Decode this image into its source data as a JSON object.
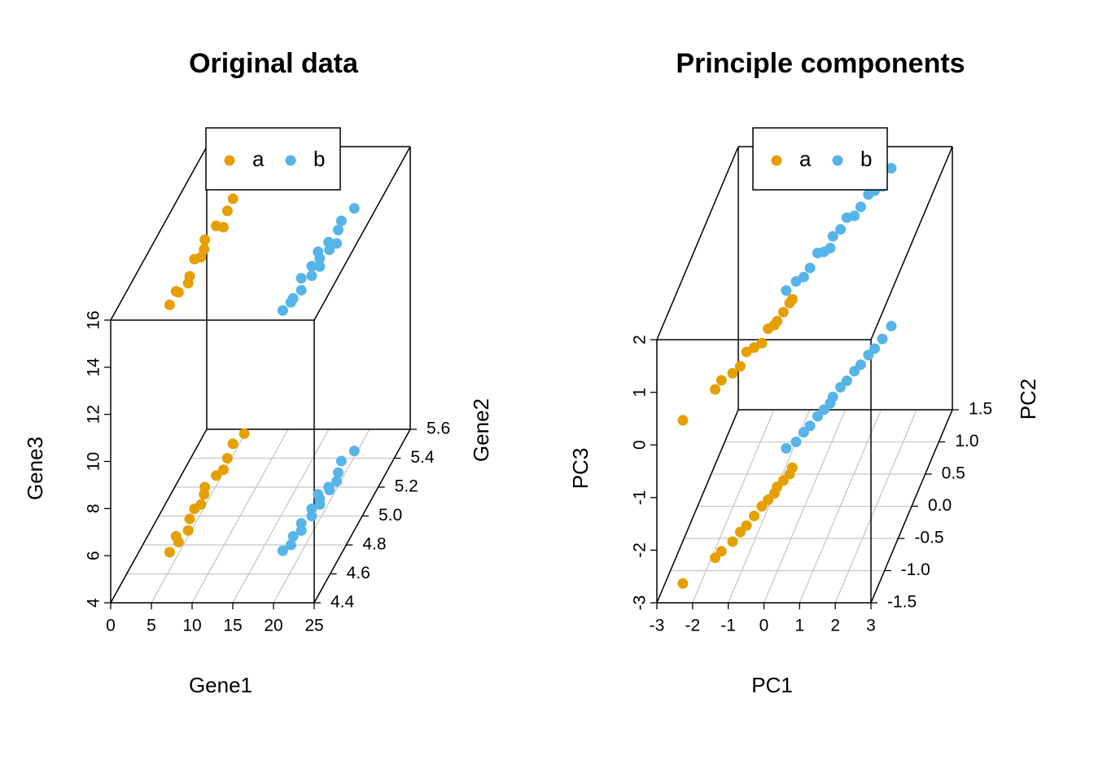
{
  "chart_data": [
    {
      "type": "scatter3d",
      "title": "Original data",
      "xlabel": "Gene1",
      "ylabel": "Gene2",
      "zlabel": "Gene3",
      "xlim": [
        0,
        25
      ],
      "ylim": [
        4.4,
        5.6
      ],
      "zlim": [
        4,
        16
      ],
      "xticks": [
        0,
        5,
        10,
        15,
        20,
        25
      ],
      "yticks": [
        4.4,
        4.6,
        4.8,
        {
          "value": 5,
          "label": "5.0"
        },
        5.2,
        5.4,
        5.6
      ],
      "zticks": [
        4,
        6,
        8,
        10,
        12,
        14,
        16
      ],
      "grid": true,
      "legend": "top",
      "series": [
        {
          "name": "a",
          "color": "#e69f00",
          "x": [
            3.8,
            4.2,
            3.5,
            4.6,
            4.0,
            3.9,
            4.4,
            4.1,
            3.7,
            4.3,
            4.8,
            4.5,
            4.2,
            4.9
          ],
          "y": [
            4.75,
            4.82,
            4.86,
            4.9,
            4.98,
            5.05,
            5.08,
            5.15,
            5.2,
            5.28,
            5.32,
            5.4,
            5.5,
            5.57
          ],
          "z": [
            14.5,
            14.6,
            14.4,
            14.5,
            14.3,
            14.6,
            14.5,
            14.4,
            14.5,
            14.6,
            14.3,
            14.5,
            14.4,
            14.6
          ]
        },
        {
          "name": "b",
          "color": "#56b4e9",
          "x": [
            17.6,
            18.2,
            17.9,
            18.5,
            18.0,
            18.8,
            18.3,
            19.0,
            18.6,
            18.1,
            19.2,
            18.9,
            19.5,
            19.1,
            18.7,
            19.6
          ],
          "y": [
            4.76,
            4.8,
            4.86,
            4.9,
            4.95,
            5.0,
            5.05,
            5.08,
            5.12,
            5.15,
            5.18,
            5.2,
            5.24,
            5.3,
            5.38,
            5.45
          ],
          "z": [
            14.2,
            14.3,
            14.1,
            14.2,
            14.4,
            14.2,
            14.3,
            14.1,
            14.2,
            14.3,
            14.2,
            14.4,
            14.1,
            14.3,
            14.2,
            14.3
          ]
        }
      ]
    },
    {
      "type": "scatter3d",
      "title": "Principle components",
      "xlabel": "PC1",
      "ylabel": "PC2",
      "zlabel": "PC3",
      "xlim": [
        -3,
        3
      ],
      "ylim": [
        -1.5,
        1.5
      ],
      "zlim": [
        -3,
        2
      ],
      "xticks": [
        -3,
        -2,
        -1,
        0,
        1,
        2,
        3
      ],
      "yticks": [
        -1.5,
        {
          "value": -1,
          "label": "-1.0"
        },
        -0.5,
        {
          "value": 0,
          "label": "0.0"
        },
        0.5,
        {
          "value": 1,
          "label": "1.0"
        },
        1.5
      ],
      "zticks": [
        -3,
        -2,
        -1,
        0,
        1,
        2
      ],
      "grid": true,
      "legend": "top",
      "series": [
        {
          "name": "a",
          "color": "#e69f00",
          "x": [
            -2.5,
            -1.9,
            -1.8,
            -1.6,
            -1.5,
            -1.4,
            -1.3,
            -1.2,
            -1.1,
            -1.0,
            -1.0,
            -0.9,
            -0.8,
            -0.8
          ],
          "y": [
            -1.2,
            -0.8,
            -0.7,
            -0.55,
            -0.4,
            -0.3,
            -0.15,
            0.0,
            0.1,
            0.2,
            0.3,
            0.4,
            0.5,
            0.6
          ],
          "z": [
            0.1,
            0.2,
            0.25,
            0.2,
            0.15,
            0.3,
            0.2,
            0.1,
            0.25,
            0.2,
            0.15,
            0.2,
            0.25,
            0.2
          ]
        },
        {
          "name": "b",
          "color": "#56b4e9",
          "x": [
            -1.2,
            -1.0,
            -0.9,
            -0.8,
            -0.7,
            -0.6,
            -0.5,
            -0.5,
            -0.4,
            -0.3,
            -0.2,
            -0.1,
            0.0,
            0.1,
            0.2,
            0.3
          ],
          "y": [
            0.9,
            1.0,
            1.15,
            1.25,
            1.4,
            1.5,
            1.6,
            1.7,
            1.85,
            1.95,
            2.1,
            2.2,
            2.35,
            2.45,
            2.6,
            2.8
          ],
          "z": [
            0.0,
            0.05,
            -0.05,
            0.0,
            0.1,
            0.0,
            -0.05,
            0.05,
            0.0,
            0.1,
            -0.05,
            0.0,
            0.05,
            0.0,
            -0.1,
            0.0
          ]
        }
      ]
    }
  ]
}
